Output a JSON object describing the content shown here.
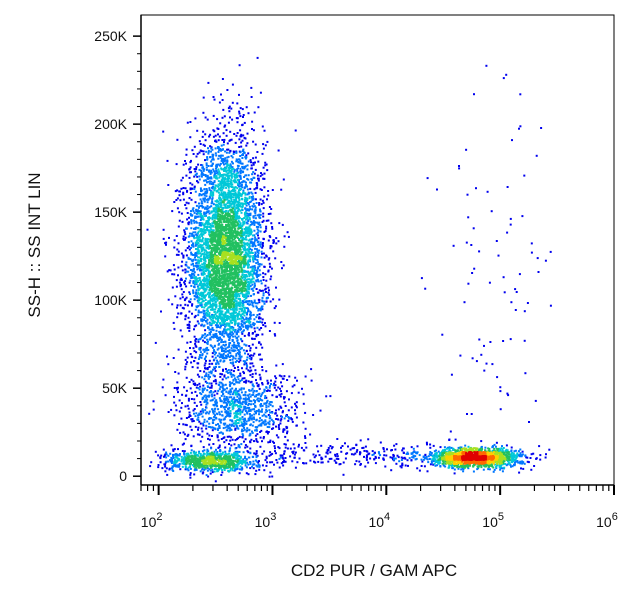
{
  "chart_data": {
    "type": "scatter",
    "plot_style": "flow-cytometry density dot plot",
    "xlabel": "CD2 PUR / GAM APC",
    "ylabel": "SS-H :: SS INT LIN",
    "x_scale": "log",
    "xlim": [
      70,
      1000000
    ],
    "ylim": [
      -5000,
      262000
    ],
    "x_ticks": [
      {
        "base": "10",
        "exp": "2",
        "value": 100
      },
      {
        "base": "10",
        "exp": "3",
        "value": 1000
      },
      {
        "base": "10",
        "exp": "4",
        "value": 10000
      },
      {
        "base": "10",
        "exp": "5",
        "value": 100000
      },
      {
        "base": "10",
        "exp": "6",
        "value": 1000000
      }
    ],
    "y_ticks": [
      {
        "label": "0",
        "value": 0
      },
      {
        "label": "50K",
        "value": 50000
      },
      {
        "label": "100K",
        "value": 100000
      },
      {
        "label": "150K",
        "value": 150000
      },
      {
        "label": "200K",
        "value": 200000
      },
      {
        "label": "250K",
        "value": 250000
      }
    ],
    "density_colormap": [
      "#0000ee",
      "#0077ff",
      "#00c8d8",
      "#22c060",
      "#a8e020",
      "#ffd000",
      "#ff6a00",
      "#e00000"
    ],
    "populations": [
      {
        "x_center": 380,
        "x_spread_decades": 0.17,
        "y_center": 125000,
        "y_spread": 33000,
        "count": 5200
      },
      {
        "x_center": 500,
        "x_spread_decades": 0.27,
        "y_center": 38000,
        "y_spread": 11000,
        "count": 900
      },
      {
        "x_center": 280,
        "x_spread_decades": 0.2,
        "y_center": 9000,
        "y_spread": 3000,
        "count": 800
      },
      {
        "x_center": 60000,
        "x_spread_decades": 0.2,
        "y_center": 11000,
        "y_spread": 2700,
        "count": 1500
      },
      {
        "x_center": 6000,
        "x_spread_decades": 0.5,
        "y_center": 12000,
        "y_spread": 3500,
        "count": 260
      },
      {
        "x_center": 90000,
        "x_spread_decades": 0.3,
        "y_center": 130000,
        "y_spread": 55000,
        "count": 90
      }
    ]
  }
}
